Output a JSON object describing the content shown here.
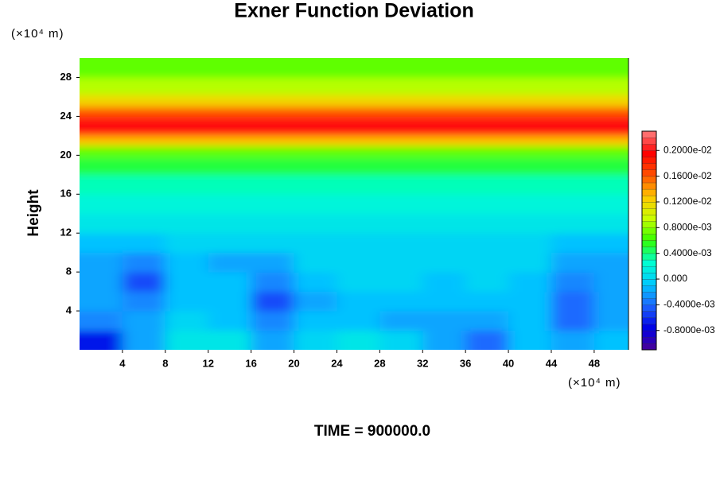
{
  "chart_data": {
    "type": "contour",
    "title": "Exner Function Deviation",
    "ylabel": "Height",
    "xunit": "(×10⁴ m)",
    "yunit": "(×10⁴ m)",
    "footer": "TIME = 900000.0",
    "xlim": [
      0,
      51.2
    ],
    "ylim": [
      0,
      30
    ],
    "xticks": [
      4,
      8,
      12,
      16,
      20,
      24,
      28,
      32,
      36,
      40,
      44,
      48
    ],
    "yticks": [
      4,
      8,
      12,
      16,
      20,
      24,
      28
    ],
    "x": [
      2,
      6,
      10,
      14,
      18,
      22,
      26,
      30,
      34,
      38,
      42,
      46,
      50
    ],
    "y": [
      1,
      3,
      5,
      7,
      9,
      11,
      13,
      15,
      17,
      19,
      20.5,
      21.5,
      22.5,
      23.5,
      24.5,
      25.5,
      27,
      29
    ],
    "z": [
      [
        -0.0007,
        -0.0002,
        0.0001,
        0.0001,
        -0.0002,
        0.0,
        0.0001,
        0.0,
        -0.0002,
        -0.0004,
        -0.0001,
        -0.0002,
        -0.0001
      ],
      [
        -0.0003,
        -0.0002,
        0.0,
        -0.0001,
        -0.0003,
        -0.0001,
        -0.0001,
        -0.0002,
        -0.0002,
        -0.0002,
        -0.0001,
        -0.0004,
        -0.0002
      ],
      [
        -0.0002,
        -0.0003,
        -0.0001,
        -0.0001,
        -0.0005,
        -0.0002,
        -0.0001,
        -0.0001,
        -0.0001,
        -0.0001,
        -0.0001,
        -0.0004,
        -0.0002
      ],
      [
        -0.0002,
        -0.0005,
        -0.0001,
        -0.0001,
        -0.0003,
        -0.0001,
        0.0,
        0.0,
        -0.0001,
        0.0,
        -0.0001,
        -0.0003,
        -0.0002
      ],
      [
        -0.0002,
        -0.0003,
        -0.0001,
        -0.0002,
        -0.0002,
        0.0,
        0.0,
        0.0,
        0.0,
        0.0,
        0.0,
        -0.0002,
        -0.0002
      ],
      [
        -0.0001,
        -0.0001,
        0.0,
        0.0,
        0.0,
        0.0,
        0.0,
        0.0,
        0.0,
        0.0,
        0.0,
        -0.0001,
        -0.0001
      ],
      [
        0.0001,
        0.0001,
        0.0001,
        0.0001,
        0.0001,
        0.0001,
        0.0001,
        0.0001,
        0.0001,
        0.0001,
        0.0001,
        0.0001,
        0.0001
      ],
      [
        0.0002,
        0.0002,
        0.0002,
        0.0002,
        0.0002,
        0.0002,
        0.0002,
        0.0002,
        0.0002,
        0.0002,
        0.0002,
        0.0002,
        0.0002
      ],
      [
        0.0003,
        0.0003,
        0.0003,
        0.0003,
        0.0003,
        0.0003,
        0.0003,
        0.0003,
        0.0003,
        0.0003,
        0.0003,
        0.0003,
        0.0003
      ],
      [
        0.0005,
        0.0005,
        0.0005,
        0.0005,
        0.0005,
        0.0005,
        0.0005,
        0.0005,
        0.0005,
        0.0005,
        0.0005,
        0.0005,
        0.0005
      ],
      [
        0.0007,
        0.0007,
        0.0007,
        0.0007,
        0.0007,
        0.0007,
        0.0007,
        0.0007,
        0.0007,
        0.0007,
        0.0007,
        0.0007,
        0.0007
      ],
      [
        0.0013,
        0.0013,
        0.0013,
        0.0013,
        0.0013,
        0.0013,
        0.0013,
        0.0013,
        0.0013,
        0.0013,
        0.0013,
        0.0013,
        0.0013
      ],
      [
        0.002,
        0.002,
        0.002,
        0.002,
        0.002,
        0.002,
        0.002,
        0.002,
        0.002,
        0.002,
        0.002,
        0.002,
        0.002
      ],
      [
        0.002,
        0.002,
        0.002,
        0.002,
        0.002,
        0.002,
        0.002,
        0.002,
        0.002,
        0.002,
        0.002,
        0.002,
        0.002
      ],
      [
        0.0016,
        0.0016,
        0.0016,
        0.0016,
        0.0016,
        0.0016,
        0.0016,
        0.0016,
        0.0016,
        0.0016,
        0.0016,
        0.0016,
        0.0016
      ],
      [
        0.0012,
        0.0012,
        0.0012,
        0.0012,
        0.0012,
        0.0012,
        0.0012,
        0.0012,
        0.0012,
        0.0012,
        0.0012,
        0.0012,
        0.0012
      ],
      [
        0.0009,
        0.0009,
        0.0009,
        0.0009,
        0.0009,
        0.0009,
        0.0009,
        0.0009,
        0.0009,
        0.0009,
        0.0009,
        0.0009,
        0.0009
      ],
      [
        0.0007,
        0.0007,
        0.0007,
        0.0007,
        0.0007,
        0.0007,
        0.0007,
        0.0007,
        0.0007,
        0.0007,
        0.0007,
        0.0007,
        0.0007
      ]
    ],
    "zlim": [
      -0.0011,
      0.0023
    ],
    "colorscale": [
      "#4b0096",
      "#0000e6",
      "#1e64ff",
      "#00c8ff",
      "#00ffd2",
      "#32ff00",
      "#c8ff00",
      "#ffc800",
      "#ff5000",
      "#ff0000",
      "#ff8080"
    ],
    "zticks": [
      {
        "value": 0.002,
        "label": "0.2000e-02"
      },
      {
        "value": 0.0016,
        "label": "0.1600e-02"
      },
      {
        "value": 0.0012,
        "label": "0.1200e-02"
      },
      {
        "value": 0.0008,
        "label": "0.8000e-03"
      },
      {
        "value": 0.0004,
        "label": "0.4000e-03"
      },
      {
        "value": 0,
        "label": "0.000"
      },
      {
        "value": -0.0004,
        "label": "-0.4000e-03"
      },
      {
        "value": -0.0008,
        "label": "-0.8000e-03"
      }
    ]
  }
}
